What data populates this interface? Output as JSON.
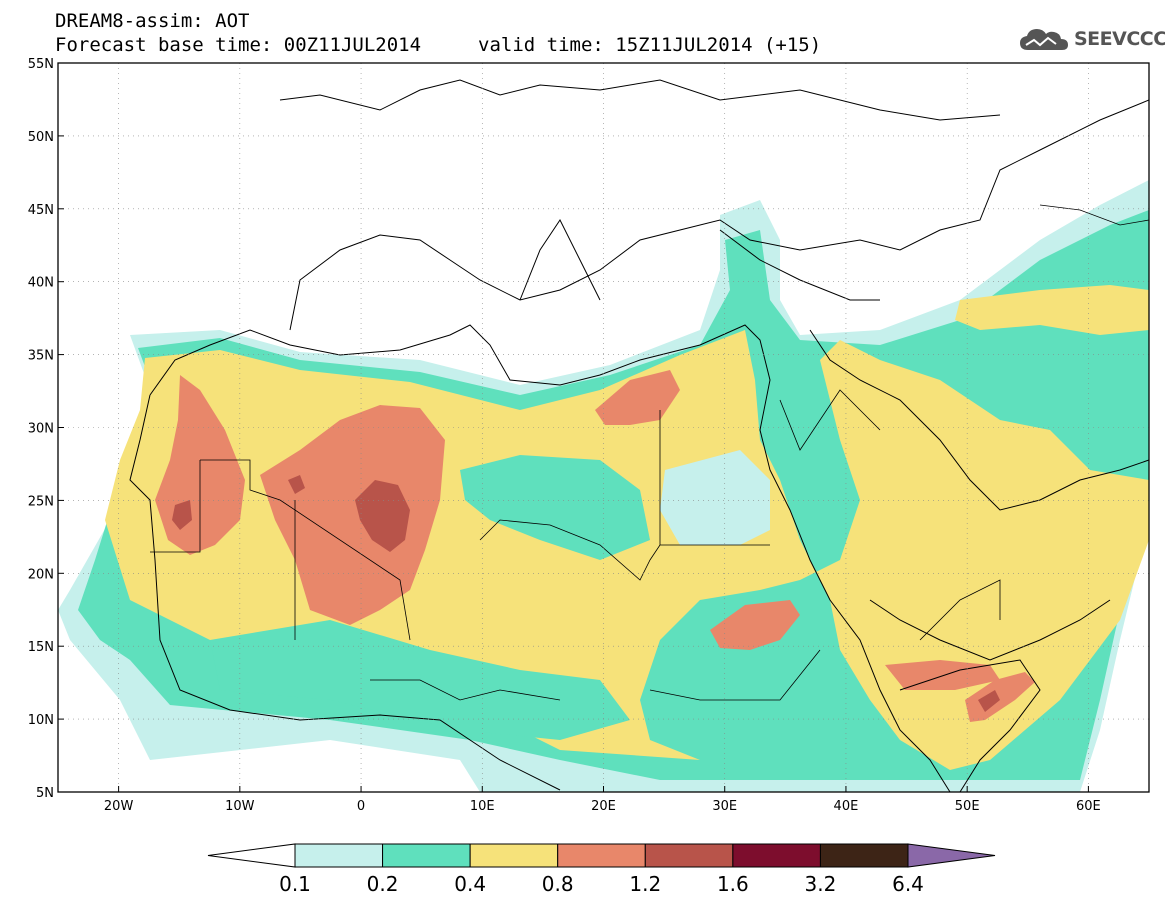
{
  "header": {
    "title_line1": "DREAM8-assim: AOT",
    "title_line2": "Forecast base time: 00Z11JUL2014",
    "valid_time": "valid time: 15Z11JUL2014 (+15)",
    "logo_text": "SEEVCCC"
  },
  "map": {
    "lon_labels": [
      "20W",
      "10W",
      "0",
      "10E",
      "20E",
      "30E",
      "40E",
      "50E",
      "60E"
    ],
    "lat_labels": [
      "55N",
      "50N",
      "45N",
      "40N",
      "35N",
      "30N",
      "25N",
      "20N",
      "15N",
      "10N",
      "5N"
    ],
    "lon_range": [
      -25,
      65
    ],
    "lat_range": [
      5,
      55
    ],
    "variable": "AOT"
  },
  "colorbar": {
    "levels": [
      "0.1",
      "0.2",
      "0.4",
      "0.8",
      "1.2",
      "1.6",
      "3.2",
      "6.4"
    ],
    "colors": [
      "#ffffff",
      "#c6f0ec",
      "#5fe0bd",
      "#f6e27a",
      "#e8876a",
      "#b8544a",
      "#7d0d2d",
      "#3d2416",
      "#8a68a8"
    ]
  }
}
